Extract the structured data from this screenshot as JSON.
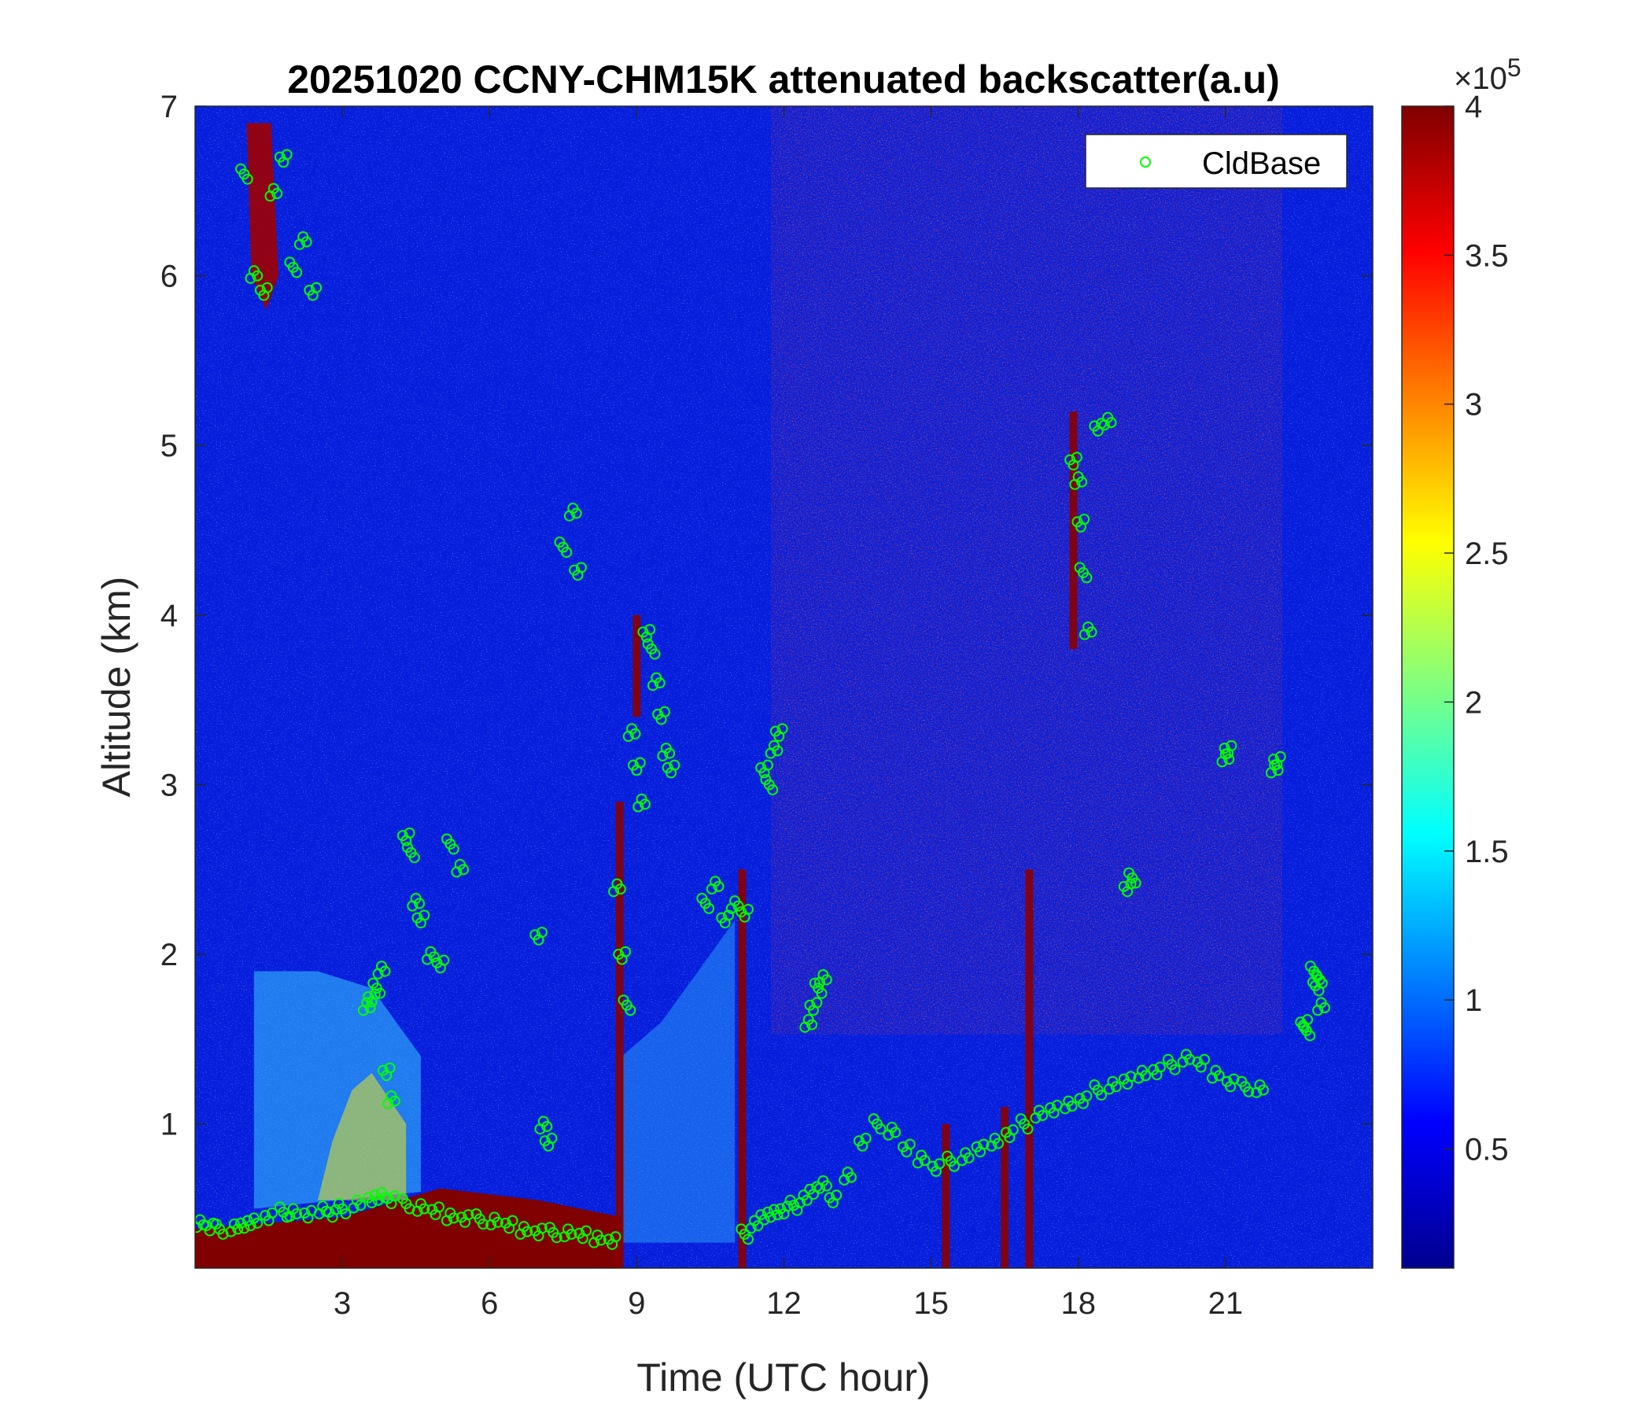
{
  "chart_data": {
    "type": "heatmap",
    "title": "20251020 CCNY-CHM15K attenuated backscatter(a.u)",
    "xlabel": "Time (UTC hour)",
    "ylabel": "Altitude (km)",
    "xlim": [
      0,
      24
    ],
    "ylim": [
      0.15,
      7
    ],
    "xticks": [
      "3",
      "6",
      "9",
      "12",
      "15",
      "18",
      "21"
    ],
    "xtick_values": [
      3,
      6,
      9,
      12,
      15,
      18,
      21
    ],
    "yticks": [
      "1",
      "2",
      "3",
      "4",
      "5",
      "6",
      "7"
    ],
    "ytick_values": [
      1,
      2,
      3,
      4,
      5,
      6,
      7
    ],
    "colormap": "jet",
    "colorbar": {
      "range": [
        0.1,
        4
      ],
      "ticks": [
        "0.5",
        "1",
        "1.5",
        "2",
        "2.5",
        "3",
        "3.5",
        "4"
      ],
      "tick_values": [
        0.5,
        1,
        1.5,
        2,
        2.5,
        3,
        3.5,
        4
      ],
      "multiplier": "×10",
      "exponent": "5"
    },
    "legend": {
      "position": "top-right",
      "entries": [
        "CldBase"
      ]
    },
    "series": [
      {
        "name": "CldBase",
        "marker": "circle",
        "color": "#00ff00",
        "x": [
          0.1,
          0.3,
          0.5,
          0.8,
          1.0,
          1.2,
          1.5,
          1.8,
          2.0,
          2.3,
          2.6,
          2.8,
          3.0,
          3.3,
          3.6,
          3.8,
          4.0,
          4.3,
          4.6,
          4.9,
          5.2,
          5.5,
          5.8,
          6.1,
          6.4,
          6.7,
          7.0,
          7.3,
          7.6,
          7.9,
          8.2,
          8.5,
          1.0,
          1.2,
          1.4,
          1.6,
          1.8,
          2.0,
          2.2,
          2.4,
          3.5,
          3.6,
          3.7,
          3.8,
          3.9,
          4.0,
          4.3,
          4.4,
          4.5,
          4.6,
          4.8,
          5.0,
          5.2,
          5.4,
          7.0,
          7.1,
          7.2,
          7.5,
          7.7,
          7.8,
          8.6,
          8.7,
          8.8,
          8.9,
          9.0,
          9.1,
          9.2,
          9.3,
          9.4,
          9.5,
          9.6,
          9.7,
          10.4,
          10.6,
          10.8,
          11.0,
          11.2,
          11.2,
          11.4,
          11.6,
          11.8,
          12.0,
          12.2,
          12.4,
          12.6,
          12.8,
          11.6,
          11.7,
          11.8,
          11.9,
          12.5,
          12.6,
          12.7,
          12.8,
          13.0,
          13.3,
          13.6,
          13.9,
          14.2,
          14.5,
          14.8,
          15.1,
          15.4,
          15.7,
          16.0,
          16.3,
          16.6,
          16.9,
          17.2,
          17.5,
          17.8,
          18.1,
          18.4,
          18.7,
          19.0,
          19.3,
          19.6,
          19.9,
          20.2,
          20.5,
          20.8,
          21.1,
          21.4,
          21.7,
          17.9,
          18.0,
          18.05,
          18.1,
          18.2,
          18.4,
          18.6,
          19.0,
          19.1,
          21.0,
          21.05,
          22.0,
          22.05,
          22.8,
          22.85,
          22.9,
          22.95,
          22.6,
          22.65
        ],
        "y": [
          0.42,
          0.4,
          0.38,
          0.38,
          0.4,
          0.43,
          0.46,
          0.48,
          0.47,
          0.46,
          0.5,
          0.48,
          0.5,
          0.52,
          0.55,
          0.58,
          0.56,
          0.53,
          0.5,
          0.48,
          0.46,
          0.45,
          0.44,
          0.42,
          0.4,
          0.38,
          0.37,
          0.36,
          0.35,
          0.34,
          0.33,
          0.32,
          6.6,
          6.0,
          5.9,
          6.5,
          6.7,
          6.05,
          6.2,
          5.9,
          1.7,
          1.75,
          1.8,
          1.9,
          1.3,
          1.15,
          2.7,
          2.6,
          2.3,
          2.2,
          2.0,
          1.95,
          2.65,
          2.5,
          2.1,
          1.0,
          0.9,
          4.4,
          4.6,
          4.25,
          2.4,
          2.0,
          1.7,
          3.3,
          3.1,
          2.9,
          3.9,
          3.8,
          3.6,
          3.4,
          3.2,
          3.1,
          2.3,
          2.4,
          2.2,
          2.3,
          2.25,
          0.35,
          0.4,
          0.45,
          0.48,
          0.5,
          0.52,
          0.55,
          0.6,
          0.65,
          3.1,
          3.0,
          3.2,
          3.3,
          1.6,
          1.7,
          1.8,
          1.85,
          0.55,
          0.7,
          0.9,
          1.0,
          0.95,
          0.85,
          0.8,
          0.75,
          0.78,
          0.8,
          0.85,
          0.9,
          0.95,
          1.0,
          1.05,
          1.08,
          1.12,
          1.15,
          1.2,
          1.22,
          1.25,
          1.3,
          1.32,
          1.35,
          1.38,
          1.35,
          1.3,
          1.25,
          1.22,
          1.2,
          4.9,
          4.8,
          4.55,
          4.25,
          3.9,
          5.1,
          5.15,
          2.4,
          2.45,
          3.15,
          3.2,
          3.1,
          3.15,
          1.9,
          1.85,
          1.8,
          1.7,
          1.6,
          1.55
        ]
      }
    ]
  }
}
